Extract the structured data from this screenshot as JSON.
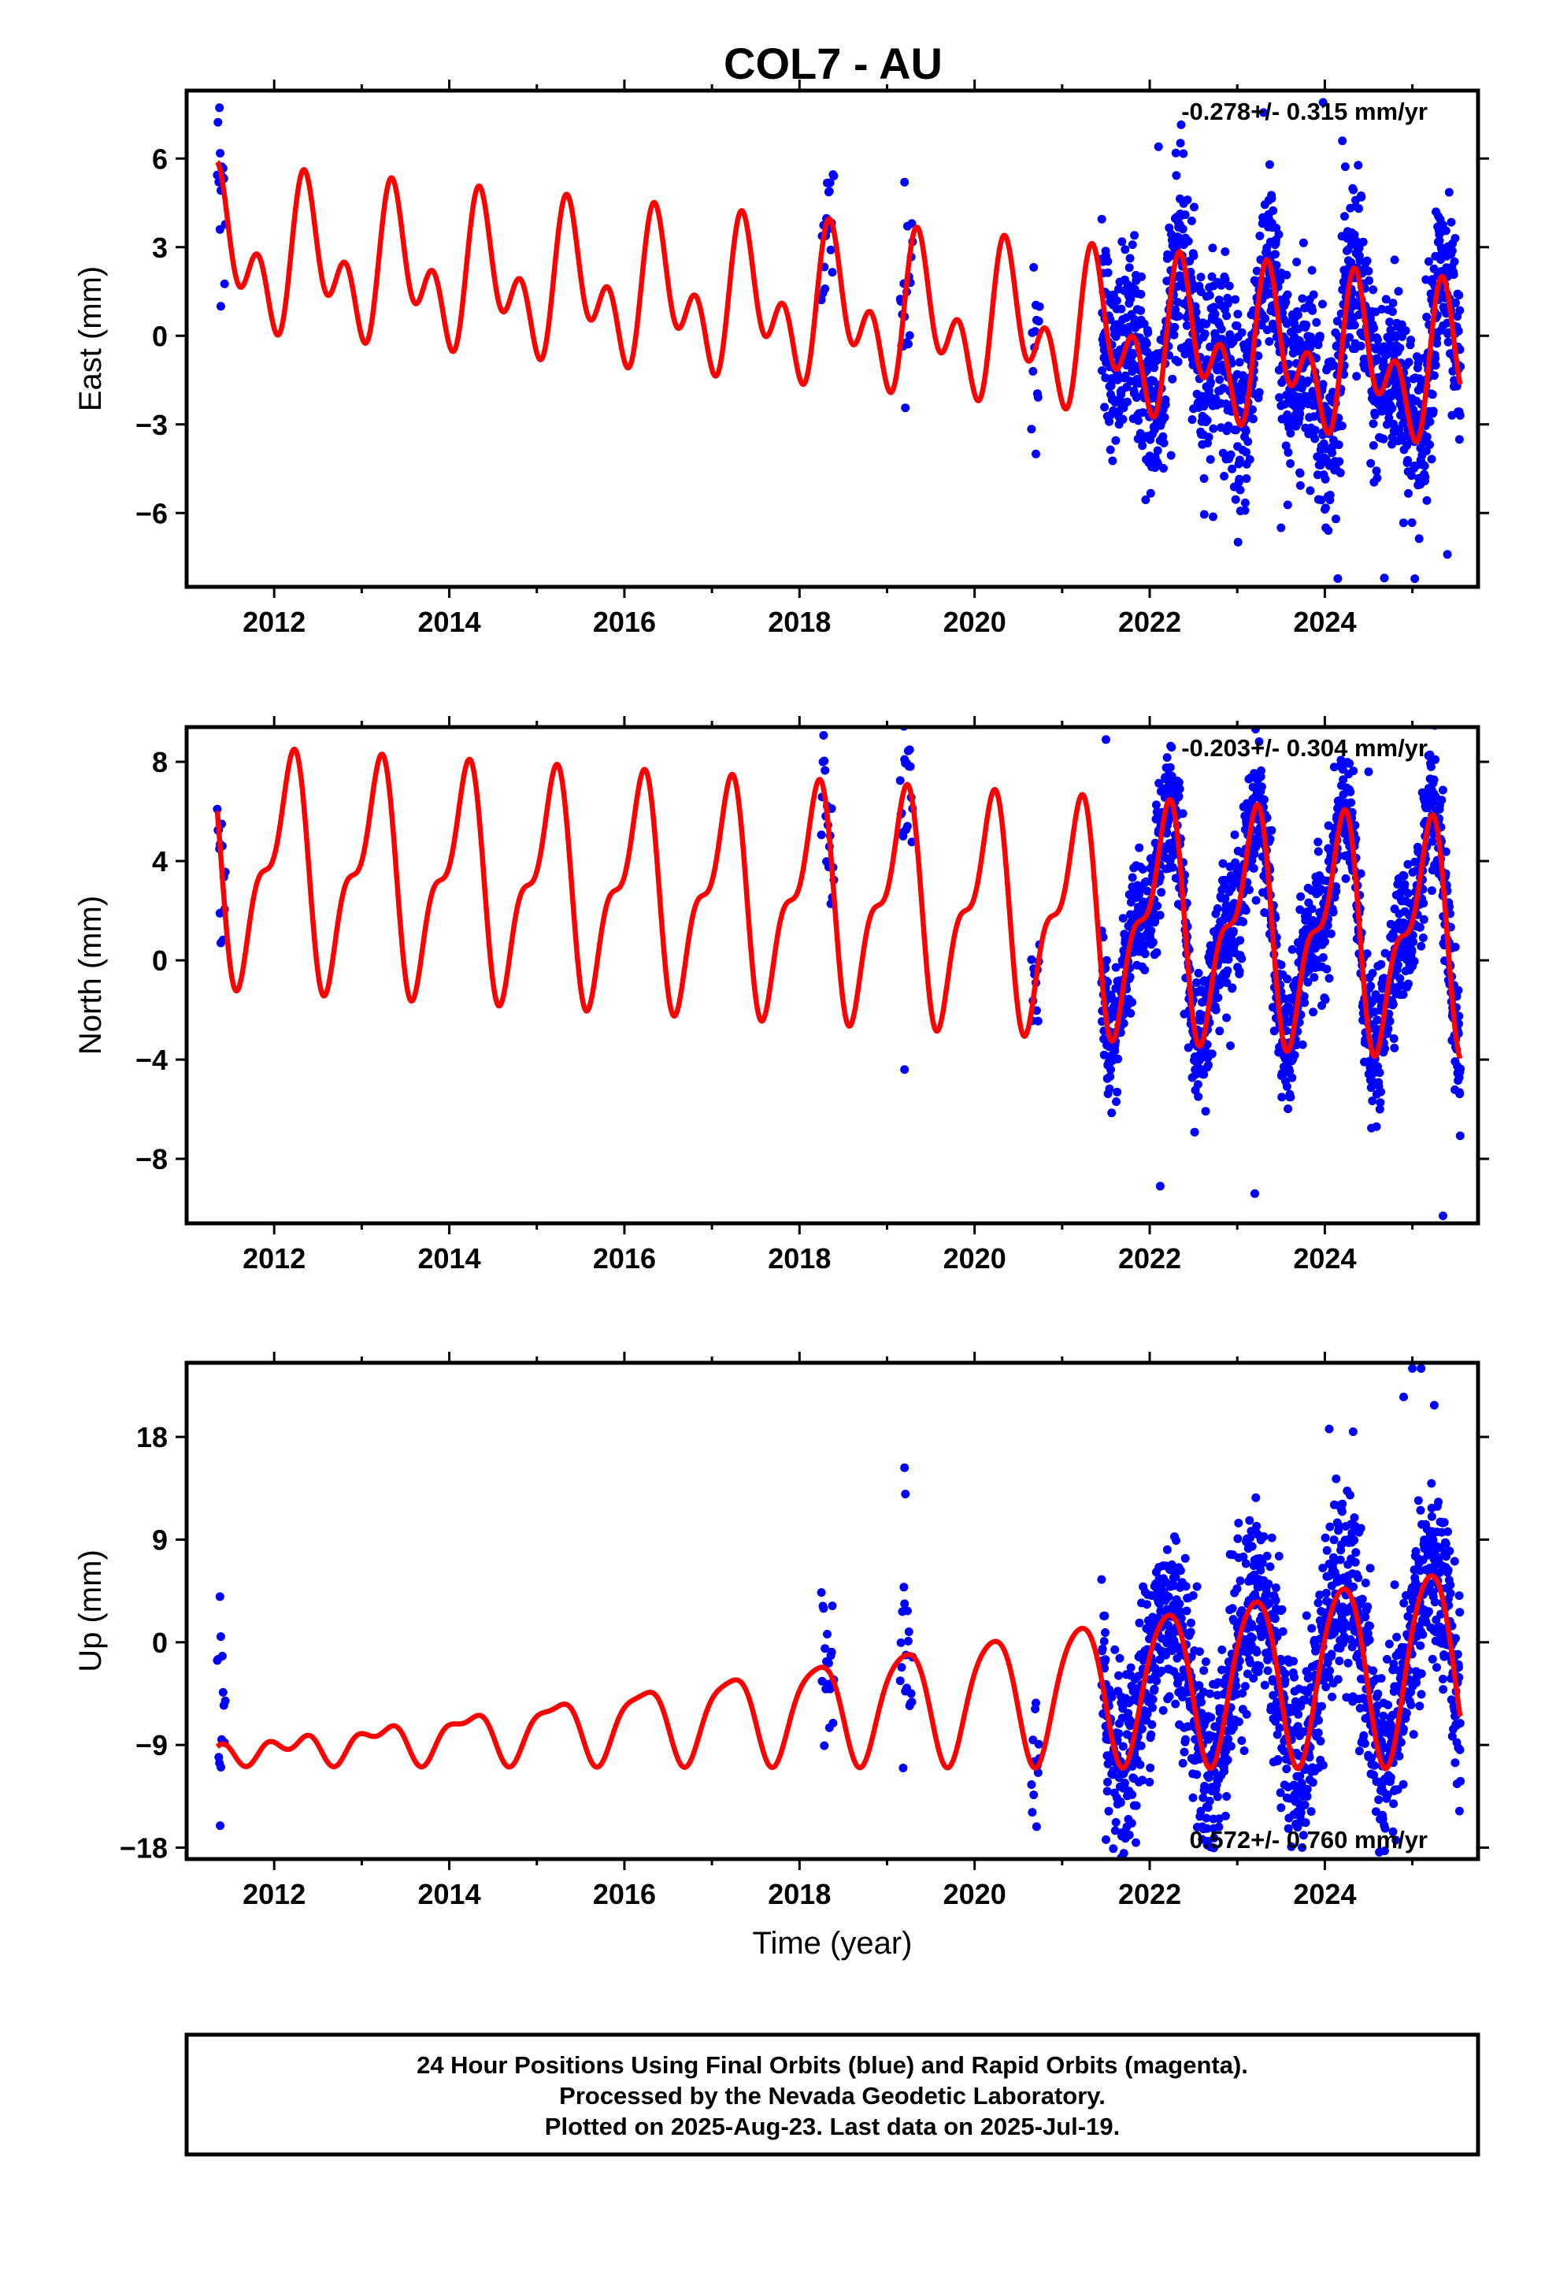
{
  "footer": {
    "line1": "24 Hour Positions Using Final Orbits (blue) and Rapid Orbits (magenta).",
    "line2": "Processed by the Nevada Geodetic Laboratory.",
    "line3": "Plotted on 2025-Aug-23. Last data on 2025-Jul-19."
  },
  "colors": {
    "observations": "#0000ff",
    "model": "#ff0000",
    "frame": "#000000"
  },
  "chart_data": [
    {
      "type": "scatter",
      "title": "COL7 - AU",
      "ylabel": "East (mm)",
      "xlabel": "",
      "xlim": [
        2011.0,
        2025.75
      ],
      "ylim": [
        -8.5,
        8.3
      ],
      "xticks": [
        "2012",
        "2014",
        "2016",
        "2018",
        "2020",
        "2022",
        "2024"
      ],
      "yticks": [
        "6",
        "3",
        "0",
        "−3",
        "−6"
      ],
      "rate_annotation": "-0.278+/- 0.315 mm/yr",
      "grid": false,
      "series": [
        {
          "role": "observations",
          "marker": "dot",
          "data_segments": [
            [
              2011.35,
              2011.45
            ],
            [
              2018.25,
              2018.4
            ],
            [
              2019.15,
              2019.3
            ],
            [
              2020.65,
              2020.75
            ],
            [
              2021.45,
              2025.55
            ]
          ],
          "model": {
            "offset": 0.9,
            "trend": -0.278,
            "a1": 1.7,
            "p1": 0.85,
            "a2": 1.6,
            "p2": 0.3,
            "amp_drift": 0.0
          },
          "scatter_sd": 1.6,
          "highlighted_points": [
            {
              "x": 2011.38,
              "y": 3.6
            },
            {
              "x": 2011.39,
              "y": 1.0
            },
            {
              "x": 2019.2,
              "y": 5.2
            },
            {
              "x": 2020.7,
              "y": -4.0
            },
            {
              "x": 2022.1,
              "y": 6.4
            },
            {
              "x": 2023.98,
              "y": 7.9
            },
            {
              "x": 2024.2,
              "y": 6.6
            },
            {
              "x": 2024.68,
              "y": -8.2
            },
            {
              "x": 2025.4,
              "y": -7.4
            },
            {
              "x": 2023.5,
              "y": -6.5
            }
          ]
        },
        {
          "role": "model",
          "style": "line"
        }
      ]
    },
    {
      "type": "scatter",
      "title": "",
      "ylabel": "North (mm)",
      "xlabel": "",
      "xlim": [
        2011.0,
        2025.75
      ],
      "ylim": [
        -10.6,
        9.4
      ],
      "xticks": [
        "2012",
        "2014",
        "2016",
        "2018",
        "2020",
        "2022",
        "2024"
      ],
      "yticks": [
        "8",
        "4",
        "0",
        "−4",
        "−8"
      ],
      "rate_annotation": "-0.203+/- 0.304 mm/yr",
      "grid": false,
      "series": [
        {
          "role": "observations",
          "marker": "dot",
          "data_segments": [
            [
              2011.35,
              2011.45
            ],
            [
              2018.25,
              2018.4
            ],
            [
              2019.15,
              2019.3
            ],
            [
              2020.65,
              2020.75
            ],
            [
              2021.45,
              2025.55
            ]
          ],
          "model": {
            "offset": 2.4,
            "trend": -0.203,
            "a1": 3.9,
            "p1": 0.1,
            "a2": 1.8,
            "p2": 0.35,
            "amp_drift": 0.0
          },
          "scatter_sd": 1.3,
          "highlighted_points": [
            {
              "x": 2011.38,
              "y": 1.9
            },
            {
              "x": 2011.39,
              "y": 0.7
            },
            {
              "x": 2019.2,
              "y": -4.4
            },
            {
              "x": 2021.5,
              "y": 8.9
            },
            {
              "x": 2022.12,
              "y": -9.1
            },
            {
              "x": 2023.2,
              "y": -9.4
            },
            {
              "x": 2025.35,
              "y": -10.3
            },
            {
              "x": 2024.5,
              "y": 7.6
            }
          ]
        },
        {
          "role": "model",
          "style": "line"
        }
      ]
    },
    {
      "type": "scatter",
      "title": "",
      "ylabel": "Up (mm)",
      "xlabel": "Time (year)",
      "xlim": [
        2011.0,
        2025.75
      ],
      "ylim": [
        -19.0,
        24.5
      ],
      "xticks": [
        "2012",
        "2014",
        "2016",
        "2018",
        "2020",
        "2022",
        "2024"
      ],
      "yticks": [
        "18",
        "9",
        "0",
        "−9",
        "−18"
      ],
      "rate_annotation": "0.572+/- 0.760 mm/yr",
      "grid": false,
      "series": [
        {
          "role": "observations",
          "marker": "dot",
          "data_segments": [
            [
              2011.35,
              2011.45
            ],
            [
              2018.25,
              2018.4
            ],
            [
              2019.15,
              2019.3
            ],
            [
              2020.65,
              2020.75
            ],
            [
              2021.45,
              2025.55
            ]
          ],
          "model": {
            "offset": -6.0,
            "trend": 0.572,
            "a1": 4.2,
            "p1": 0.05,
            "a2": 0.8,
            "p2": 0.2,
            "amp_drift": 0.14
          },
          "scatter_sd": 4.2,
          "highlighted_points": [
            {
              "x": 2011.38,
              "y": 4.0
            },
            {
              "x": 2011.39,
              "y": 0.5
            },
            {
              "x": 2019.2,
              "y": 15.3
            },
            {
              "x": 2019.21,
              "y": 13.0
            },
            {
              "x": 2024.9,
              "y": 21.5
            },
            {
              "x": 2025.1,
              "y": 24.0
            },
            {
              "x": 2025.0,
              "y": 24.0
            },
            {
              "x": 2021.5,
              "y": -17.3
            },
            {
              "x": 2023.5,
              "y": -14.5
            },
            {
              "x": 2024.05,
              "y": 18.7
            }
          ]
        },
        {
          "role": "model",
          "style": "line"
        }
      ]
    }
  ]
}
